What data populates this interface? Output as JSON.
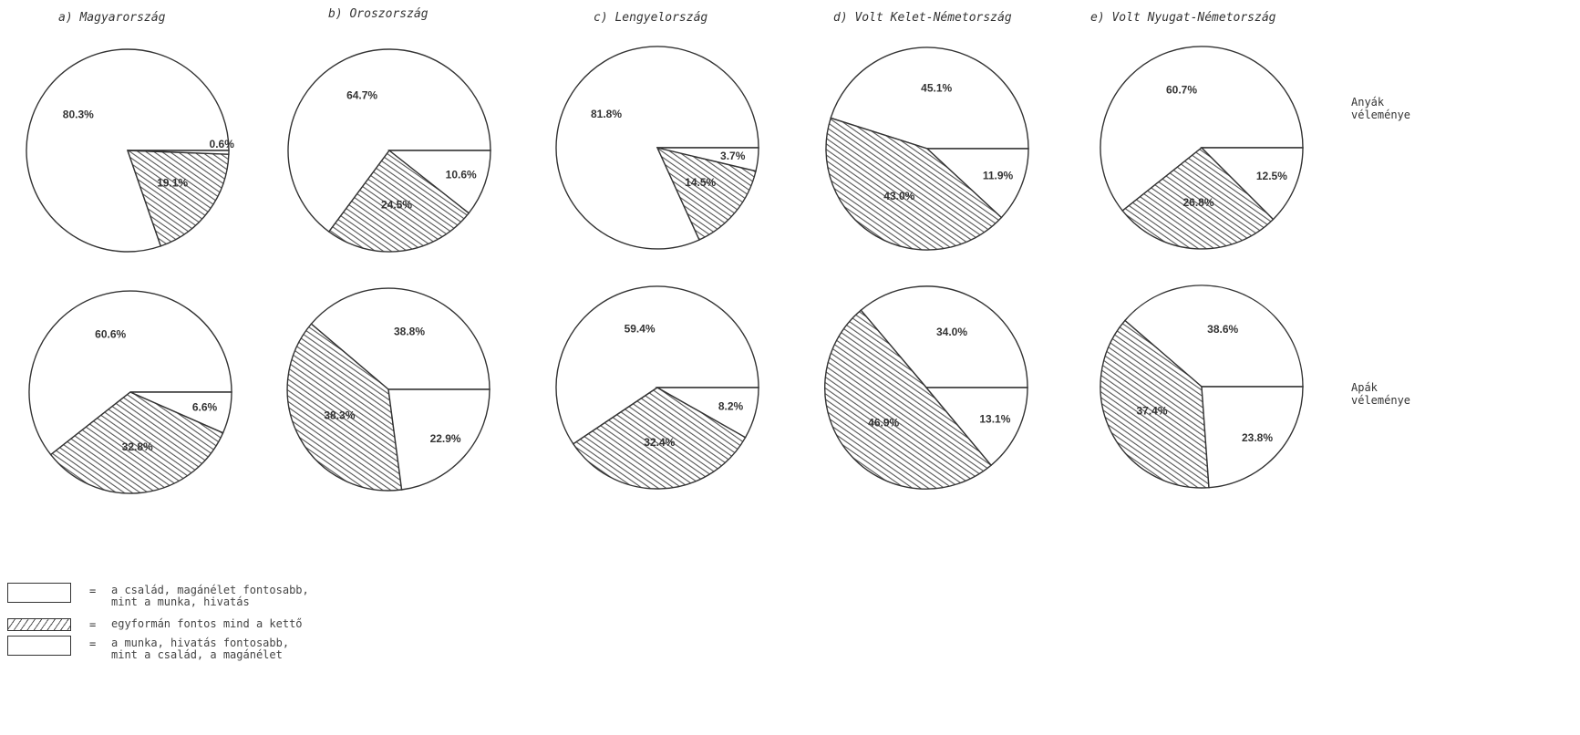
{
  "chart_data": {
    "type": "pie",
    "rows": [
      {
        "label": "Anyák\nvéleménye"
      },
      {
        "label": "Apák\nvéleménye"
      }
    ],
    "charts": [
      {
        "title": "a) Magyarország",
        "mothers": {
          "family": 80.3,
          "equal": 19.1,
          "work": 0.6,
          "labels": [
            "80.3%",
            "19.1%",
            "0.6%"
          ]
        },
        "fathers": {
          "family": 60.6,
          "equal": 32.8,
          "work": 6.6,
          "labels": [
            "60.6%",
            "32.8%",
            "6.6%"
          ]
        }
      },
      {
        "title": "b) Oroszország",
        "mothers": {
          "family": 64.7,
          "equal": 24.5,
          "work": 10.6,
          "labels": [
            "64.7%",
            "24.5%",
            "10.6%"
          ]
        },
        "fathers": {
          "family": 38.8,
          "equal": 38.3,
          "work": 22.9,
          "labels": [
            "38.8%",
            "38.3%",
            "22.9%"
          ]
        }
      },
      {
        "title": "c) Lengyelország",
        "mothers": {
          "family": 81.8,
          "equal": 14.5,
          "work": 3.7,
          "labels": [
            "81.8%",
            "14.5%",
            "3.7%"
          ]
        },
        "fathers": {
          "family": 59.4,
          "equal": 32.4,
          "work": 8.2,
          "labels": [
            "59.4%",
            "32.4%",
            "8.2%"
          ]
        }
      },
      {
        "title": "d) Volt Kelet-Németország",
        "mothers": {
          "family": 45.1,
          "equal": 43.0,
          "work": 11.9,
          "labels": [
            "45.1%",
            "43.0%",
            "11.9%"
          ]
        },
        "fathers": {
          "family": 34.0,
          "equal": 46.9,
          "work": 13.1,
          "labels": [
            "34.0%",
            "46.9%",
            "13.1%"
          ]
        }
      },
      {
        "title": "e) Volt Nyugat-Németország",
        "mothers": {
          "family": 60.7,
          "equal": 26.8,
          "work": 12.5,
          "labels": [
            "60.7%",
            "26.8%",
            "12.5%"
          ]
        },
        "fathers": {
          "family": 38.6,
          "equal": 37.4,
          "work": 23.8,
          "labels": [
            "38.6%",
            "37.4%",
            "23.8%"
          ]
        }
      }
    ],
    "legend": [
      {
        "key": "family",
        "symbol": "",
        "eq": "=",
        "text": "a család, magánélet fontosabb,\nmint a munka, hivatás"
      },
      {
        "key": "equal",
        "symbol": "///////",
        "eq": "=",
        "text": "egyformán fontos mind a kettő"
      },
      {
        "key": "work",
        "symbol": "",
        "eq": "=",
        "text": "a munka, hivatás fontosabb,\nmint a család, a magánélet"
      }
    ],
    "colors": {
      "outline": "#333333",
      "hatch": "#555555",
      "fill": "#ffffff"
    }
  }
}
